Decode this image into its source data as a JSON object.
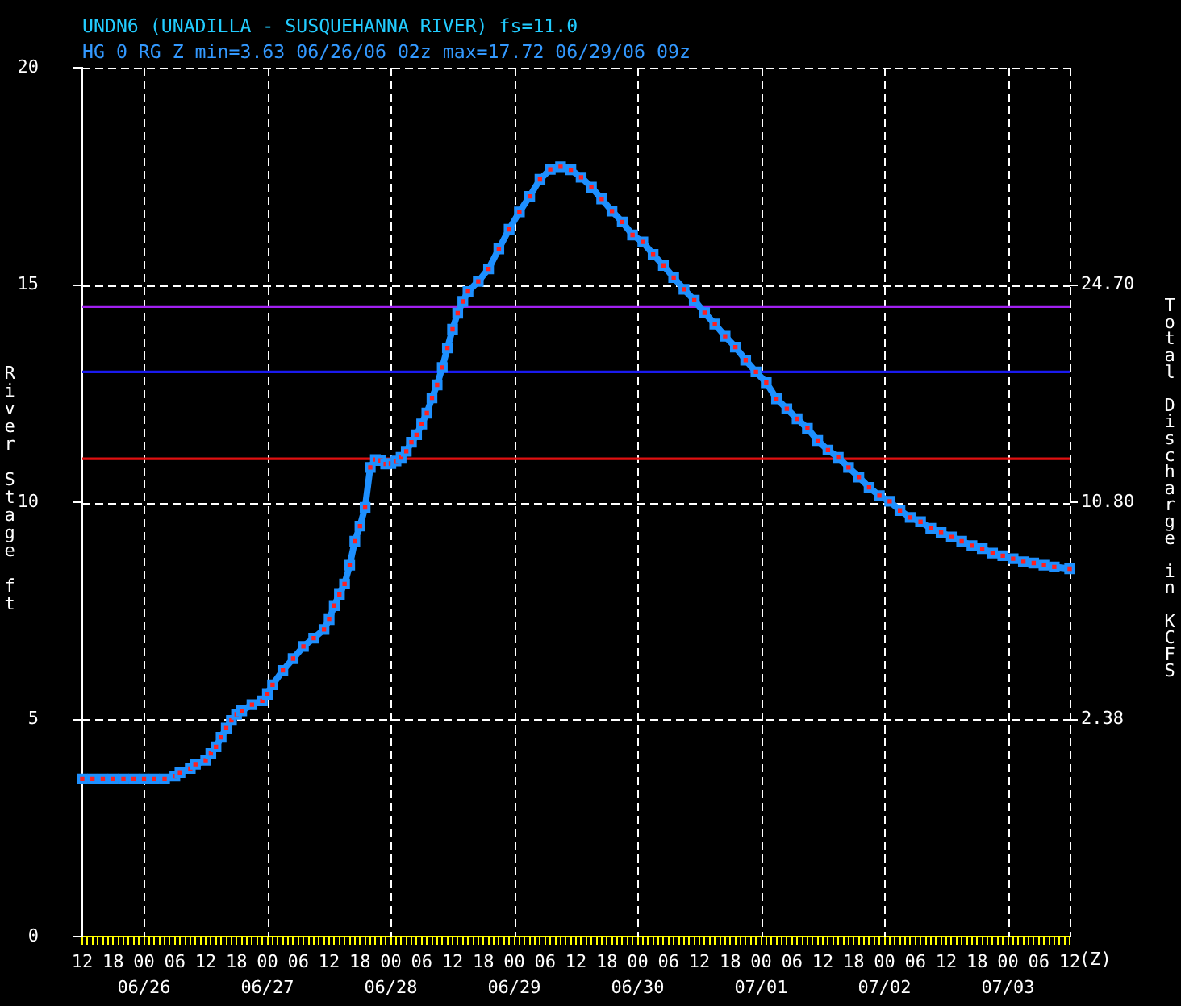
{
  "chart_data": {
    "type": "line",
    "title": "UNDN6 (UNADILLA - SUSQUEHANNA RIVER) fs=11.0",
    "subtitle": "HG 0 RG Z min=3.63 06/26/06 02z max=17.72 06/29/06 09z",
    "xlabel": "(Z)",
    "ylabel": "River Stage ft",
    "y2label": "Total Discharge in KCFS",
    "x": [
      "--06-25T12:00",
      "--06-25T14:00",
      "--06-25T16:00",
      "--06-25T18:00",
      "--06-25T20:00",
      "--06-25T22:00",
      "--06-26T00:00",
      "--06-26T02:00",
      "--06-26T04:00",
      "--06-26T06:00",
      "--06-26T07:00",
      "--06-26T09:00",
      "--06-26T10:00",
      "--06-26T12:00",
      "--06-26T13:00",
      "--06-26T14:00",
      "--06-26T15:00",
      "--06-26T16:00",
      "--06-26T17:00",
      "--06-26T18:00",
      "--06-26T19:00",
      "--06-26T21:00",
      "--06-26T23:00",
      "--06-27T00:00",
      "--06-27T01:00",
      "--06-27T03:00",
      "--06-27T05:00",
      "--06-27T07:00",
      "--06-27T09:00",
      "--06-27T11:00",
      "--06-27T12:00",
      "--06-27T13:00",
      "--06-27T14:00",
      "--06-27T15:00",
      "--06-27T16:00",
      "--06-27T17:00",
      "--06-27T18:00",
      "--06-27T19:00",
      "--06-27T20:00",
      "--06-27T21:00",
      "--06-27T22:00",
      "--06-27T23:00",
      "--06-28T00:00",
      "--06-28T01:00",
      "--06-28T02:00",
      "--06-28T03:00",
      "--06-28T04:00",
      "--06-28T05:00",
      "--06-28T06:00",
      "--06-28T07:00",
      "--06-28T08:00",
      "--06-28T09:00",
      "--06-28T10:00",
      "--06-28T11:00",
      "--06-28T12:00",
      "--06-28T13:00",
      "--06-28T14:00",
      "--06-28T15:00",
      "--06-28T17:00",
      "--06-28T19:00",
      "--06-28T21:00",
      "--06-28T23:00",
      "--06-29T01:00",
      "--06-29T03:00",
      "--06-29T05:00",
      "--06-29T07:00",
      "--06-29T09:00",
      "--06-29T11:00",
      "--06-29T13:00",
      "--06-29T15:00",
      "--06-29T17:00",
      "--06-29T19:00",
      "--06-29T21:00",
      "--06-29T23:00",
      "--06-30T01:00",
      "--06-30T03:00",
      "--06-30T05:00",
      "--06-30T07:00",
      "--06-30T09:00",
      "--06-30T11:00",
      "--06-30T13:00",
      "--06-30T15:00",
      "--06-30T17:00",
      "--06-30T19:00",
      "--06-30T21:00",
      "--06-30T23:00",
      "--07-01T01:00",
      "--07-01T03:00",
      "--07-01T05:00",
      "--07-01T07:00",
      "--07-01T09:00",
      "--07-01T11:00",
      "--07-01T13:00",
      "--07-01T15:00",
      "--07-01T17:00",
      "--07-01T19:00",
      "--07-01T21:00",
      "--07-01T23:00",
      "--07-02T01:00",
      "--07-02T03:00",
      "--07-02T05:00",
      "--07-02T07:00",
      "--07-02T09:00",
      "--07-02T11:00",
      "--07-02T13:00",
      "--07-02T15:00",
      "--07-02T17:00",
      "--07-02T19:00",
      "--07-02T21:00",
      "--07-02T23:00",
      "--07-03T01:00",
      "--07-03T03:00",
      "--07-03T05:00",
      "--07-03T07:00",
      "--07-03T09:00",
      "--07-03T12:00"
    ],
    "series": [
      {
        "color": "#1e90ff",
        "values": [
          3.63,
          3.63,
          3.63,
          3.63,
          3.63,
          3.63,
          3.63,
          3.63,
          3.63,
          3.7,
          3.78,
          3.87,
          3.97,
          4.06,
          4.22,
          4.37,
          4.59,
          4.8,
          4.98,
          5.12,
          5.2,
          5.34,
          5.43,
          5.58,
          5.8,
          6.13,
          6.4,
          6.68,
          6.87,
          7.07,
          7.3,
          7.62,
          7.88,
          8.12,
          8.55,
          9.1,
          9.45,
          9.88,
          10.8,
          10.98,
          10.96,
          10.88,
          10.89,
          10.95,
          11.03,
          11.17,
          11.38,
          11.55,
          11.8,
          12.05,
          12.4,
          12.7,
          13.1,
          13.55,
          13.98,
          14.35,
          14.62,
          14.85,
          15.08,
          15.37,
          15.83,
          16.28,
          16.68,
          17.04,
          17.43,
          17.66,
          17.72,
          17.65,
          17.48,
          17.25,
          16.98,
          16.7,
          16.45,
          16.15,
          15.99,
          15.7,
          15.45,
          15.17,
          14.9,
          14.65,
          14.36,
          14.1,
          13.82,
          13.57,
          13.27,
          13.0,
          12.75,
          12.38,
          12.15,
          11.92,
          11.7,
          11.42,
          11.2,
          11.03,
          10.8,
          10.58,
          10.34,
          10.15,
          10.02,
          9.81,
          9.65,
          9.55,
          9.4,
          9.3,
          9.2,
          9.1,
          9.0,
          8.93,
          8.83,
          8.77,
          8.7,
          8.63,
          8.6,
          8.55,
          8.51,
          8.47
        ]
      }
    ],
    "xlim": [
      "--06-25T12:00",
      "--07-03T12:00"
    ],
    "xticks": [
      {
        "value": "--06-25T12:00",
        "label": "12"
      },
      {
        "value": "--06-25T13:00",
        "label": null
      },
      {
        "value": "--06-25T14:00",
        "label": null
      },
      {
        "value": "--06-25T15:00",
        "label": null
      },
      {
        "value": "--06-25T16:00",
        "label": null
      },
      {
        "value": "--06-25T17:00",
        "label": null
      },
      {
        "value": "--06-25T18:00",
        "label": "18"
      },
      {
        "value": "--06-25T19:00",
        "label": null
      },
      {
        "value": "--06-25T20:00",
        "label": null
      },
      {
        "value": "--06-25T21:00",
        "label": null
      },
      {
        "value": "--06-25T22:00",
        "label": null
      },
      {
        "value": "--06-25T23:00",
        "label": null
      },
      {
        "value": "--06-26T00:00",
        "label": "00\n06/26"
      },
      {
        "value": "--06-26T01:00",
        "label": null
      },
      {
        "value": "--06-26T02:00",
        "label": null
      },
      {
        "value": "--06-26T03:00",
        "label": null
      },
      {
        "value": "--06-26T04:00",
        "label": null
      },
      {
        "value": "--06-26T05:00",
        "label": null
      },
      {
        "value": "--06-26T06:00",
        "label": "06"
      },
      {
        "value": "--06-26T07:00",
        "label": null
      },
      {
        "value": "--06-26T08:00",
        "label": null
      },
      {
        "value": "--06-26T09:00",
        "label": null
      },
      {
        "value": "--06-26T10:00",
        "label": null
      },
      {
        "value": "--06-26T11:00",
        "label": null
      },
      {
        "value": "--06-26T12:00",
        "label": "12"
      },
      {
        "value": "--06-26T13:00",
        "label": null
      },
      {
        "value": "--06-26T14:00",
        "label": null
      },
      {
        "value": "--06-26T15:00",
        "label": null
      },
      {
        "value": "--06-26T16:00",
        "label": null
      },
      {
        "value": "--06-26T17:00",
        "label": null
      },
      {
        "value": "--06-26T18:00",
        "label": "18"
      },
      {
        "value": "--06-26T19:00",
        "label": null
      },
      {
        "value": "--06-26T20:00",
        "label": null
      },
      {
        "value": "--06-26T21:00",
        "label": null
      },
      {
        "value": "--06-26T22:00",
        "label": null
      },
      {
        "value": "--06-26T23:00",
        "label": null
      },
      {
        "value": "--06-27T00:00",
        "label": "00\n06/27"
      },
      {
        "value": "--06-27T01:00",
        "label": null
      },
      {
        "value": "--06-27T02:00",
        "label": null
      },
      {
        "value": "--06-27T03:00",
        "label": null
      },
      {
        "value": "--06-27T04:00",
        "label": null
      },
      {
        "value": "--06-27T05:00",
        "label": null
      },
      {
        "value": "--06-27T06:00",
        "label": "06"
      },
      {
        "value": "--06-27T07:00",
        "label": null
      },
      {
        "value": "--06-27T08:00",
        "label": null
      },
      {
        "value": "--06-27T09:00",
        "label": null
      },
      {
        "value": "--06-27T10:00",
        "label": null
      },
      {
        "value": "--06-27T11:00",
        "label": null
      },
      {
        "value": "--06-27T12:00",
        "label": "12"
      },
      {
        "value": "--06-27T13:00",
        "label": null
      },
      {
        "value": "--06-27T14:00",
        "label": null
      },
      {
        "value": "--06-27T15:00",
        "label": null
      },
      {
        "value": "--06-27T16:00",
        "label": null
      },
      {
        "value": "--06-27T17:00",
        "label": null
      },
      {
        "value": "--06-27T18:00",
        "label": "18"
      },
      {
        "value": "--06-27T19:00",
        "label": null
      },
      {
        "value": "--06-27T20:00",
        "label": null
      },
      {
        "value": "--06-27T21:00",
        "label": null
      },
      {
        "value": "--06-27T22:00",
        "label": null
      },
      {
        "value": "--06-27T23:00",
        "label": null
      },
      {
        "value": "--06-28T00:00",
        "label": "00\n06/28"
      },
      {
        "value": "--06-28T01:00",
        "label": null
      },
      {
        "value": "--06-28T02:00",
        "label": null
      },
      {
        "value": "--06-28T03:00",
        "label": null
      },
      {
        "value": "--06-28T04:00",
        "label": null
      },
      {
        "value": "--06-28T05:00",
        "label": null
      },
      {
        "value": "--06-28T06:00",
        "label": "06"
      },
      {
        "value": "--06-28T07:00",
        "label": null
      },
      {
        "value": "--06-28T08:00",
        "label": null
      },
      {
        "value": "--06-28T09:00",
        "label": null
      },
      {
        "value": "--06-28T10:00",
        "label": null
      },
      {
        "value": "--06-28T11:00",
        "label": null
      },
      {
        "value": "--06-28T12:00",
        "label": "12"
      },
      {
        "value": "--06-28T13:00",
        "label": null
      },
      {
        "value": "--06-28T14:00",
        "label": null
      },
      {
        "value": "--06-28T15:00",
        "label": null
      },
      {
        "value": "--06-28T16:00",
        "label": null
      },
      {
        "value": "--06-28T17:00",
        "label": null
      },
      {
        "value": "--06-28T18:00",
        "label": "18"
      },
      {
        "value": "--06-28T19:00",
        "label": null
      },
      {
        "value": "--06-28T20:00",
        "label": null
      },
      {
        "value": "--06-28T21:00",
        "label": null
      },
      {
        "value": "--06-28T22:00",
        "label": null
      },
      {
        "value": "--06-28T23:00",
        "label": null
      },
      {
        "value": "--06-29T00:00",
        "label": "00\n06/29"
      },
      {
        "value": "--06-29T01:00",
        "label": null
      },
      {
        "value": "--06-29T02:00",
        "label": null
      },
      {
        "value": "--06-29T03:00",
        "label": null
      },
      {
        "value": "--06-29T04:00",
        "label": null
      },
      {
        "value": "--06-29T05:00",
        "label": null
      },
      {
        "value": "--06-29T06:00",
        "label": "06"
      },
      {
        "value": "--06-29T07:00",
        "label": null
      },
      {
        "value": "--06-29T08:00",
        "label": null
      },
      {
        "value": "--06-29T09:00",
        "label": null
      },
      {
        "value": "--06-29T10:00",
        "label": null
      },
      {
        "value": "--06-29T11:00",
        "label": null
      },
      {
        "value": "--06-29T12:00",
        "label": "12"
      },
      {
        "value": "--06-29T13:00",
        "label": null
      },
      {
        "value": "--06-29T14:00",
        "label": null
      },
      {
        "value": "--06-29T15:00",
        "label": null
      },
      {
        "value": "--06-29T16:00",
        "label": null
      },
      {
        "value": "--06-29T17:00",
        "label": null
      },
      {
        "value": "--06-29T18:00",
        "label": "18"
      },
      {
        "value": "--06-29T19:00",
        "label": null
      },
      {
        "value": "--06-29T20:00",
        "label": null
      },
      {
        "value": "--06-29T21:00",
        "label": null
      },
      {
        "value": "--06-29T22:00",
        "label": null
      },
      {
        "value": "--06-29T23:00",
        "label": null
      },
      {
        "value": "--06-30T00:00",
        "label": "00\n06/30"
      },
      {
        "value": "--06-30T01:00",
        "label": null
      },
      {
        "value": "--06-30T02:00",
        "label": null
      },
      {
        "value": "--06-30T03:00",
        "label": null
      },
      {
        "value": "--06-30T04:00",
        "label": null
      },
      {
        "value": "--06-30T05:00",
        "label": null
      },
      {
        "value": "--06-30T06:00",
        "label": "06"
      },
      {
        "value": "--06-30T07:00",
        "label": null
      },
      {
        "value": "--06-30T08:00",
        "label": null
      },
      {
        "value": "--06-30T09:00",
        "label": null
      },
      {
        "value": "--06-30T10:00",
        "label": null
      },
      {
        "value": "--06-30T11:00",
        "label": null
      },
      {
        "value": "--06-30T12:00",
        "label": "12"
      },
      {
        "value": "--06-30T13:00",
        "label": null
      },
      {
        "value": "--06-30T14:00",
        "label": null
      },
      {
        "value": "--06-30T15:00",
        "label": null
      },
      {
        "value": "--06-30T16:00",
        "label": null
      },
      {
        "value": "--06-30T17:00",
        "label": null
      },
      {
        "value": "--06-30T18:00",
        "label": "18"
      },
      {
        "value": "--06-30T19:00",
        "label": null
      },
      {
        "value": "--06-30T20:00",
        "label": null
      },
      {
        "value": "--06-30T21:00",
        "label": null
      },
      {
        "value": "--06-30T22:00",
        "label": null
      },
      {
        "value": "--06-30T23:00",
        "label": null
      },
      {
        "value": "--07-01T00:00",
        "label": "00\n07/01"
      },
      {
        "value": "--07-01T01:00",
        "label": null
      },
      {
        "value": "--07-01T02:00",
        "label": null
      },
      {
        "value": "--07-01T03:00",
        "label": null
      },
      {
        "value": "--07-01T04:00",
        "label": null
      },
      {
        "value": "--07-01T05:00",
        "label": null
      },
      {
        "value": "--07-01T06:00",
        "label": "06"
      },
      {
        "value": "--07-01T07:00",
        "label": null
      },
      {
        "value": "--07-01T08:00",
        "label": null
      },
      {
        "value": "--07-01T09:00",
        "label": null
      },
      {
        "value": "--07-01T10:00",
        "label": null
      },
      {
        "value": "--07-01T11:00",
        "label": null
      },
      {
        "value": "--07-01T12:00",
        "label": "12"
      },
      {
        "value": "--07-01T13:00",
        "label": null
      },
      {
        "value": "--07-01T14:00",
        "label": null
      },
      {
        "value": "--07-01T15:00",
        "label": null
      },
      {
        "value": "--07-01T16:00",
        "label": null
      },
      {
        "value": "--07-01T17:00",
        "label": null
      },
      {
        "value": "--07-01T18:00",
        "label": "18"
      },
      {
        "value": "--07-01T19:00",
        "label": null
      },
      {
        "value": "--07-01T20:00",
        "label": null
      },
      {
        "value": "--07-01T21:00",
        "label": null
      },
      {
        "value": "--07-01T22:00",
        "label": null
      },
      {
        "value": "--07-01T23:00",
        "label": null
      },
      {
        "value": "--07-02T00:00",
        "label": "00\n07/02"
      },
      {
        "value": "--07-02T01:00",
        "label": null
      },
      {
        "value": "--07-02T02:00",
        "label": null
      },
      {
        "value": "--07-02T03:00",
        "label": null
      },
      {
        "value": "--07-02T04:00",
        "label": null
      },
      {
        "value": "--07-02T05:00",
        "label": null
      },
      {
        "value": "--07-02T06:00",
        "label": "06"
      },
      {
        "value": "--07-02T07:00",
        "label": null
      },
      {
        "value": "--07-02T08:00",
        "label": null
      },
      {
        "value": "--07-02T09:00",
        "label": null
      },
      {
        "value": "--07-02T10:00",
        "label": null
      },
      {
        "value": "--07-02T11:00",
        "label": null
      },
      {
        "value": "--07-02T12:00",
        "label": "12"
      },
      {
        "value": "--07-02T13:00",
        "label": null
      },
      {
        "value": "--07-02T14:00",
        "label": null
      },
      {
        "value": "--07-02T15:00",
        "label": null
      },
      {
        "value": "--07-02T16:00",
        "label": null
      },
      {
        "value": "--07-02T17:00",
        "label": null
      },
      {
        "value": "--07-02T18:00",
        "label": "18"
      },
      {
        "value": "--07-02T19:00",
        "label": null
      },
      {
        "value": "--07-02T20:00",
        "label": null
      },
      {
        "value": "--07-02T21:00",
        "label": null
      },
      {
        "value": "--07-02T22:00",
        "label": null
      },
      {
        "value": "--07-02T23:00",
        "label": null
      },
      {
        "value": "--07-03T00:00",
        "label": "00\n07/03"
      },
      {
        "value": "--07-03T01:00",
        "label": null
      },
      {
        "value": "--07-03T02:00",
        "label": null
      },
      {
        "value": "--07-03T03:00",
        "label": null
      },
      {
        "value": "--07-03T04:00",
        "label": null
      },
      {
        "value": "--07-03T05:00",
        "label": null
      },
      {
        "value": "--07-03T06:00",
        "label": "06"
      },
      {
        "value": "--07-03T07:00",
        "label": null
      },
      {
        "value": "--07-03T08:00",
        "label": null
      },
      {
        "value": "--07-03T09:00",
        "label": null
      },
      {
        "value": "--07-03T10:00",
        "label": null
      },
      {
        "value": "--07-03T11:00",
        "label": null
      },
      {
        "value": "--07-03T12:00",
        "label": "12"
      }
    ],
    "ylim": [
      0,
      20
    ],
    "yticks": [
      0,
      5,
      10,
      15,
      20
    ],
    "y2_categories": [
      null,
      "24.70",
      "10.80",
      "2.38",
      null
    ],
    "ref_lines": [
      {
        "axis": "y",
        "value": 14.5,
        "color": "#a020f0"
      },
      {
        "axis": "y",
        "value": 13,
        "color": "#1a1aee"
      },
      {
        "axis": "y",
        "value": 11,
        "color": "#e01010"
      }
    ],
    "grid": true,
    "marker": "square",
    "line_style": "solid"
  }
}
